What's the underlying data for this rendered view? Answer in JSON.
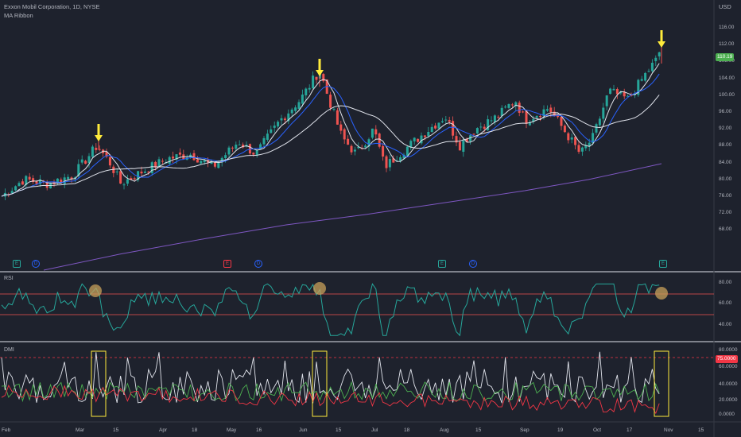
{
  "header": {
    "symbol_title": "Exxon Mobil Corporation, 1D, NYSE",
    "indicator_name": "MA Ribbon",
    "currency": "USD"
  },
  "price_axis": {
    "ticks": [
      "116.00",
      "112.00",
      "108.00",
      "104.00",
      "100.00",
      "96.00",
      "92.00",
      "88.00",
      "84.00",
      "80.00",
      "76.00",
      "72.00",
      "68.00"
    ],
    "last_price": "110.19",
    "last_price_color": "#4caf50"
  },
  "rsi": {
    "label": "RSI",
    "ticks": [
      "80.00",
      "60.00",
      "40.00"
    ]
  },
  "dmi": {
    "label": "DMI",
    "ticks": [
      "80.0000",
      "60.0000",
      "40.0000",
      "20.0000",
      "0.0000"
    ],
    "level_badge": "75.0000",
    "level_badge_color": "#f23645"
  },
  "time_axis": [
    "Feb",
    "Mar",
    "15",
    "Apr",
    "18",
    "May",
    "16",
    "Jun",
    "15",
    "Jul",
    "18",
    "Aug",
    "15",
    "Sep",
    "19",
    "Oct",
    "17",
    "Nov",
    "15"
  ],
  "events": [
    {
      "type": "E",
      "color": "#26a69a"
    },
    {
      "type": "D",
      "color": "#2962ff"
    },
    {
      "type": "E",
      "color": "#f23645"
    },
    {
      "type": "D",
      "color": "#2962ff"
    },
    {
      "type": "E",
      "color": "#26a69a"
    },
    {
      "type": "D",
      "color": "#2962ff"
    },
    {
      "type": "E",
      "color": "#26a69a"
    }
  ],
  "colors": {
    "background": "#1e222d",
    "up": "#26a69a",
    "down": "#ef5350",
    "arrow": "#ffeb3b",
    "ma_white": "#e0e3eb",
    "ma_blue": "#2962ff",
    "ma_purple": "#7e57c2",
    "rsi_line": "#26a69a",
    "rsi_band": "#ef5350",
    "highlight_circle": "#c8a05a",
    "dmi_adx": "#e0e3eb",
    "dmi_plus": "#4caf50",
    "dmi_minus": "#f23645"
  },
  "chart_data": [
    {
      "type": "candlestick",
      "title": "Exxon Mobil Corporation, 1D, NYSE",
      "ylabel": "USD",
      "ylim": [
        68,
        118
      ],
      "x": [
        "Feb",
        "Mar",
        "15",
        "Apr",
        "18",
        "May",
        "16",
        "Jun",
        "15",
        "Jul",
        "18",
        "Aug",
        "15",
        "Sep",
        "19",
        "Oct",
        "17",
        "Nov",
        "15"
      ],
      "close_series": [
        {
          "x": "Feb",
          "y": 76
        },
        {
          "x": "Mar",
          "y": 82
        },
        {
          "x": "15",
          "y": 80
        },
        {
          "x": "Apr",
          "y": 84
        },
        {
          "x": "18",
          "y": 86
        },
        {
          "x": "May",
          "y": 88
        },
        {
          "x": "16",
          "y": 90
        },
        {
          "x": "Jun",
          "y": 102
        },
        {
          "x": "15",
          "y": 93
        },
        {
          "x": "Jul",
          "y": 84
        },
        {
          "x": "18",
          "y": 86
        },
        {
          "x": "Aug",
          "y": 90
        },
        {
          "x": "15",
          "y": 92
        },
        {
          "x": "Sep",
          "y": 96
        },
        {
          "x": "19",
          "y": 92
        },
        {
          "x": "Oct",
          "y": 88
        },
        {
          "x": "17",
          "y": 102
        },
        {
          "x": "Nov",
          "y": 110.19
        }
      ],
      "peaks": [
        "Mar",
        "Jun",
        "Nov"
      ]
    },
    {
      "type": "line",
      "title": "RSI",
      "ylim": [
        25,
        85
      ],
      "levels": [
        70,
        50
      ]
    },
    {
      "type": "line",
      "title": "DMI",
      "ylim": [
        0,
        85
      ],
      "levels": [
        75
      ]
    }
  ]
}
